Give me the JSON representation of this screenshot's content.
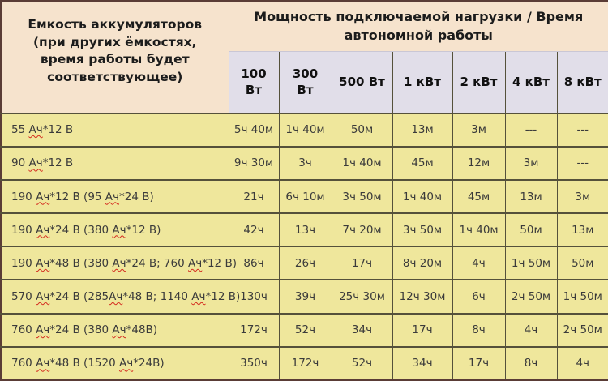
{
  "colors": {
    "header_beige": "#f6e3cd",
    "colhead_lavender": "#e1dee9",
    "cell_yellow": "#efe79c",
    "grid_line": "#55513b",
    "outer_border": "#5a3c36",
    "spellcheck_red": "#d42a1e"
  },
  "chart_data": {
    "type": "table",
    "title": "Мощность подключаемой нагрузки / Время автономной работы",
    "corner_header": "Емкость аккумуляторов (при других ёмкостях, время работы будет соответствующее)",
    "columns": [
      "100 Вт",
      "300 Вт",
      "500 Вт",
      "1 кВт",
      "2 кВт",
      "4 кВт",
      "8 кВт"
    ],
    "rows": [
      {
        "label": "55 Ач*12 В",
        "values": [
          "5ч 40м",
          "1ч 40м",
          "50м",
          "13м",
          "3м",
          "---",
          "---"
        ]
      },
      {
        "label": "90 Ач*12 В",
        "values": [
          "9ч 30м",
          "3ч",
          "1ч 40м",
          "45м",
          "12м",
          "3м",
          "---"
        ]
      },
      {
        "label": "190 Ач*12 В (95 Ач*24 В)",
        "values": [
          "21ч",
          "6ч 10м",
          "3ч 50м",
          "1ч 40м",
          "45м",
          "13м",
          "3м"
        ]
      },
      {
        "label": "190 Ач*24 В (380 Ач*12 В)",
        "values": [
          "42ч",
          "13ч",
          "7ч 20м",
          "3ч 50м",
          "1ч 40м",
          "50м",
          "13м"
        ]
      },
      {
        "label": "190 Ач*48 В (380 Ач*24 В; 760 Ач*12 В)",
        "values": [
          "86ч",
          "26ч",
          "17ч",
          "8ч 20м",
          "4ч",
          "1ч 50м",
          "50м"
        ]
      },
      {
        "label": "570 Ач*24 В (285Ач*48 В; 1140 Ач*12 В)",
        "values": [
          "130ч",
          "39ч",
          "25ч 30м",
          "12ч 30м",
          "6ч",
          "2ч 50м",
          "1ч 50м"
        ]
      },
      {
        "label": "760 Ач*24 В (380 Ач*48В)",
        "values": [
          "172ч",
          "52ч",
          "34ч",
          "17ч",
          "8ч",
          "4ч",
          "2ч 50м"
        ]
      },
      {
        "label": "760 Ач*48 В (1520 Ач*24В)",
        "values": [
          "350ч",
          "172ч",
          "52ч",
          "34ч",
          "17ч",
          "8ч",
          "4ч"
        ]
      }
    ]
  }
}
